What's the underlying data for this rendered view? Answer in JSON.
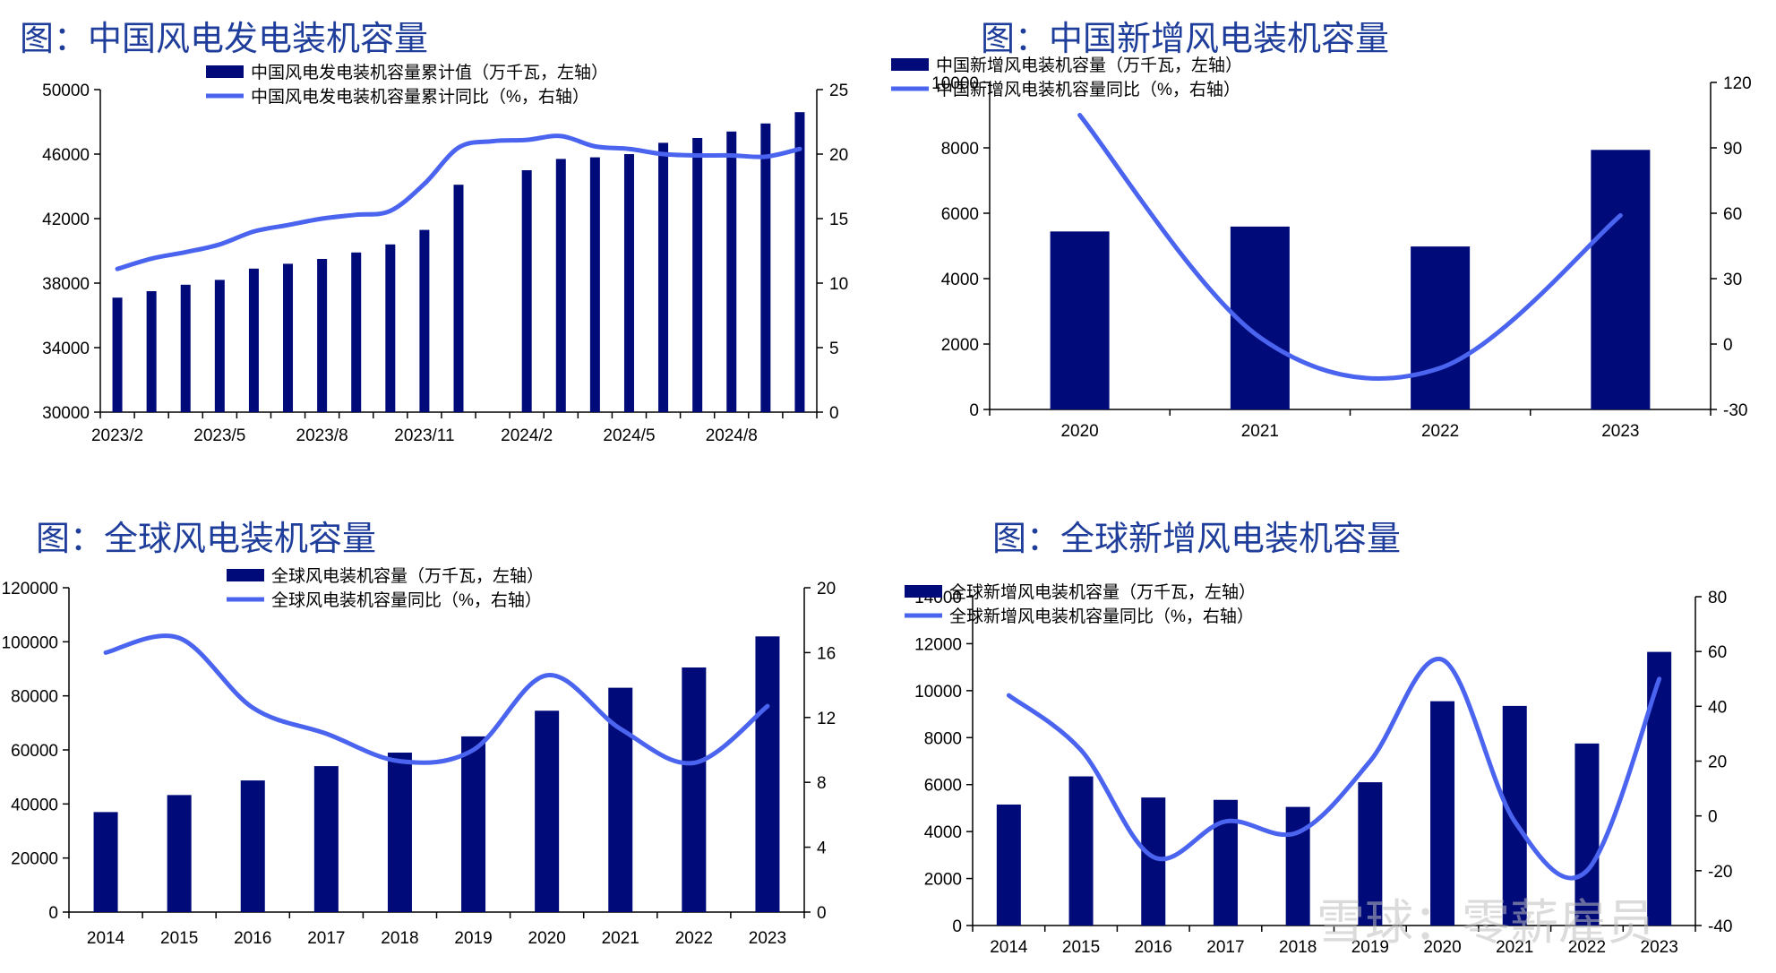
{
  "panels": [
    {
      "title": "图：中国风电发电装机容量"
    },
    {
      "title": "图：中国新增风电装机容量"
    },
    {
      "title": "图：全球风电装机容量"
    },
    {
      "title": "图：全球新增风电装机容量"
    }
  ],
  "watermark": "雪球：零薪雇员",
  "colors": {
    "bar": "#000a78",
    "line": "#4a64ef",
    "title": "#1f3d9a"
  },
  "chart_data": [
    {
      "type": "bar+line",
      "title": "图：中国风电发电装机容量",
      "categories": [
        "2023/2",
        "2023/3",
        "2023/4",
        "2023/5",
        "2023/6",
        "2023/7",
        "2023/8",
        "2023/9",
        "2023/10",
        "2023/11",
        "2023/12",
        "2024/1",
        "2024/2",
        "2024/3",
        "2024/4",
        "2024/5",
        "2024/6",
        "2024/7",
        "2024/8",
        "2024/9",
        "2024/10"
      ],
      "x_tick_labels": [
        "2023/2",
        "2023/5",
        "2023/8",
        "2023/11",
        "2024/2",
        "2024/5",
        "2024/8"
      ],
      "series": [
        {
          "name": "中国风电发电装机容量累计值（万千瓦，左轴）",
          "type": "bar",
          "axis": "left",
          "values": [
            37100,
            37500,
            37900,
            38200,
            38900,
            39200,
            39500,
            39900,
            40400,
            41300,
            44100,
            null,
            45000,
            45700,
            45800,
            46000,
            46700,
            47000,
            47400,
            47900,
            48600
          ]
        },
        {
          "name": "中国风电发电装机容量累计同比（%，右轴）",
          "type": "line",
          "axis": "right",
          "values": [
            11.1,
            11.9,
            12.4,
            13.0,
            14.0,
            14.5,
            15.0,
            15.3,
            15.6,
            17.7,
            20.5,
            21.0,
            21.1,
            21.4,
            20.6,
            20.4,
            20.0,
            19.9,
            19.9,
            19.8,
            20.4
          ]
        }
      ],
      "ylim_left": [
        30000,
        50000
      ],
      "yticks_left": [
        30000,
        34000,
        38000,
        42000,
        46000,
        50000
      ],
      "ylim_right": [
        0,
        25
      ],
      "yticks_right": [
        0,
        5,
        10,
        15,
        20,
        25
      ]
    },
    {
      "type": "bar+line",
      "title": "图：中国新增风电装机容量",
      "categories": [
        "2020",
        "2021",
        "2022",
        "2023"
      ],
      "series": [
        {
          "name": "中国新增风电装机容量（万千瓦，左轴）",
          "type": "bar",
          "axis": "left",
          "values": [
            5443,
            5592,
            4983,
            7937
          ]
        },
        {
          "name": "中国新增风电装机容量同比（%，右轴）",
          "type": "line",
          "axis": "right",
          "values": [
            105,
            3,
            -11,
            59
          ]
        }
      ],
      "ylim_left": [
        0,
        10000
      ],
      "yticks_left": [
        0,
        2000,
        4000,
        6000,
        8000,
        10000
      ],
      "ylim_right": [
        -30,
        120
      ],
      "yticks_right": [
        -30,
        0,
        30,
        60,
        90,
        120
      ]
    },
    {
      "type": "bar+line",
      "title": "图：全球风电装机容量",
      "categories": [
        "2014",
        "2015",
        "2016",
        "2017",
        "2018",
        "2019",
        "2020",
        "2021",
        "2022",
        "2023"
      ],
      "series": [
        {
          "name": "全球风电装机容量（万千瓦，左轴）",
          "type": "bar",
          "axis": "left",
          "values": [
            37000,
            43300,
            48700,
            54000,
            59000,
            65000,
            74500,
            83000,
            90500,
            102000
          ]
        },
        {
          "name": "全球风电装机容量同比（%，右轴）",
          "type": "line",
          "axis": "right",
          "values": [
            16.0,
            16.9,
            12.6,
            11.0,
            9.3,
            10.0,
            14.6,
            11.3,
            9.2,
            12.7
          ]
        }
      ],
      "ylim_left": [
        0,
        120000
      ],
      "yticks_left": [
        0,
        20000,
        40000,
        60000,
        80000,
        100000,
        120000
      ],
      "ylim_right": [
        0,
        20
      ],
      "yticks_right": [
        0,
        4,
        8,
        12,
        16,
        20
      ]
    },
    {
      "type": "bar+line",
      "title": "图：全球新增风电装机容量",
      "categories": [
        "2014",
        "2015",
        "2016",
        "2017",
        "2018",
        "2019",
        "2020",
        "2021",
        "2022",
        "2023"
      ],
      "series": [
        {
          "name": "全球新增风电装机容量（万千瓦，左轴）",
          "type": "bar",
          "axis": "left",
          "values": [
            5150,
            6350,
            5450,
            5350,
            5050,
            6100,
            9550,
            9350,
            7750,
            11650
          ]
        },
        {
          "name": "全球新增风电装机容量同比（%，右轴）",
          "type": "line",
          "axis": "right",
          "values": [
            44,
            24,
            -15,
            -2,
            -6,
            20,
            57,
            -2,
            -20,
            50
          ]
        }
      ],
      "ylim_left": [
        0,
        14000
      ],
      "yticks_left": [
        0,
        2000,
        4000,
        6000,
        8000,
        10000,
        12000,
        14000
      ],
      "ylim_right": [
        -40,
        80
      ],
      "yticks_right": [
        -40,
        -20,
        0,
        20,
        40,
        60,
        80
      ]
    }
  ]
}
